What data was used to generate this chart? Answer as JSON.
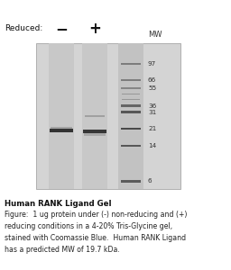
{
  "title": "Human RANK Ligand Gel",
  "caption_bold": "Human RANK Ligand Gel",
  "caption_normal": "Figure:  1 ug protein under (-) non-reducing and (+)\nreducing conditions in a 4-20% Tris-Glycine gel,\nstained with Coomassie Blue.  Human RANK Ligand\nhas a predicted MW of 19.7 kDa.",
  "mw_markers": [
    97,
    66,
    55,
    36,
    31,
    21,
    14,
    6
  ],
  "figure_bg": "#ffffff",
  "gel_bg": "#d4d4d4",
  "lane_bg": "#c8c8c8",
  "ladder_bg": "#c2c2c2"
}
